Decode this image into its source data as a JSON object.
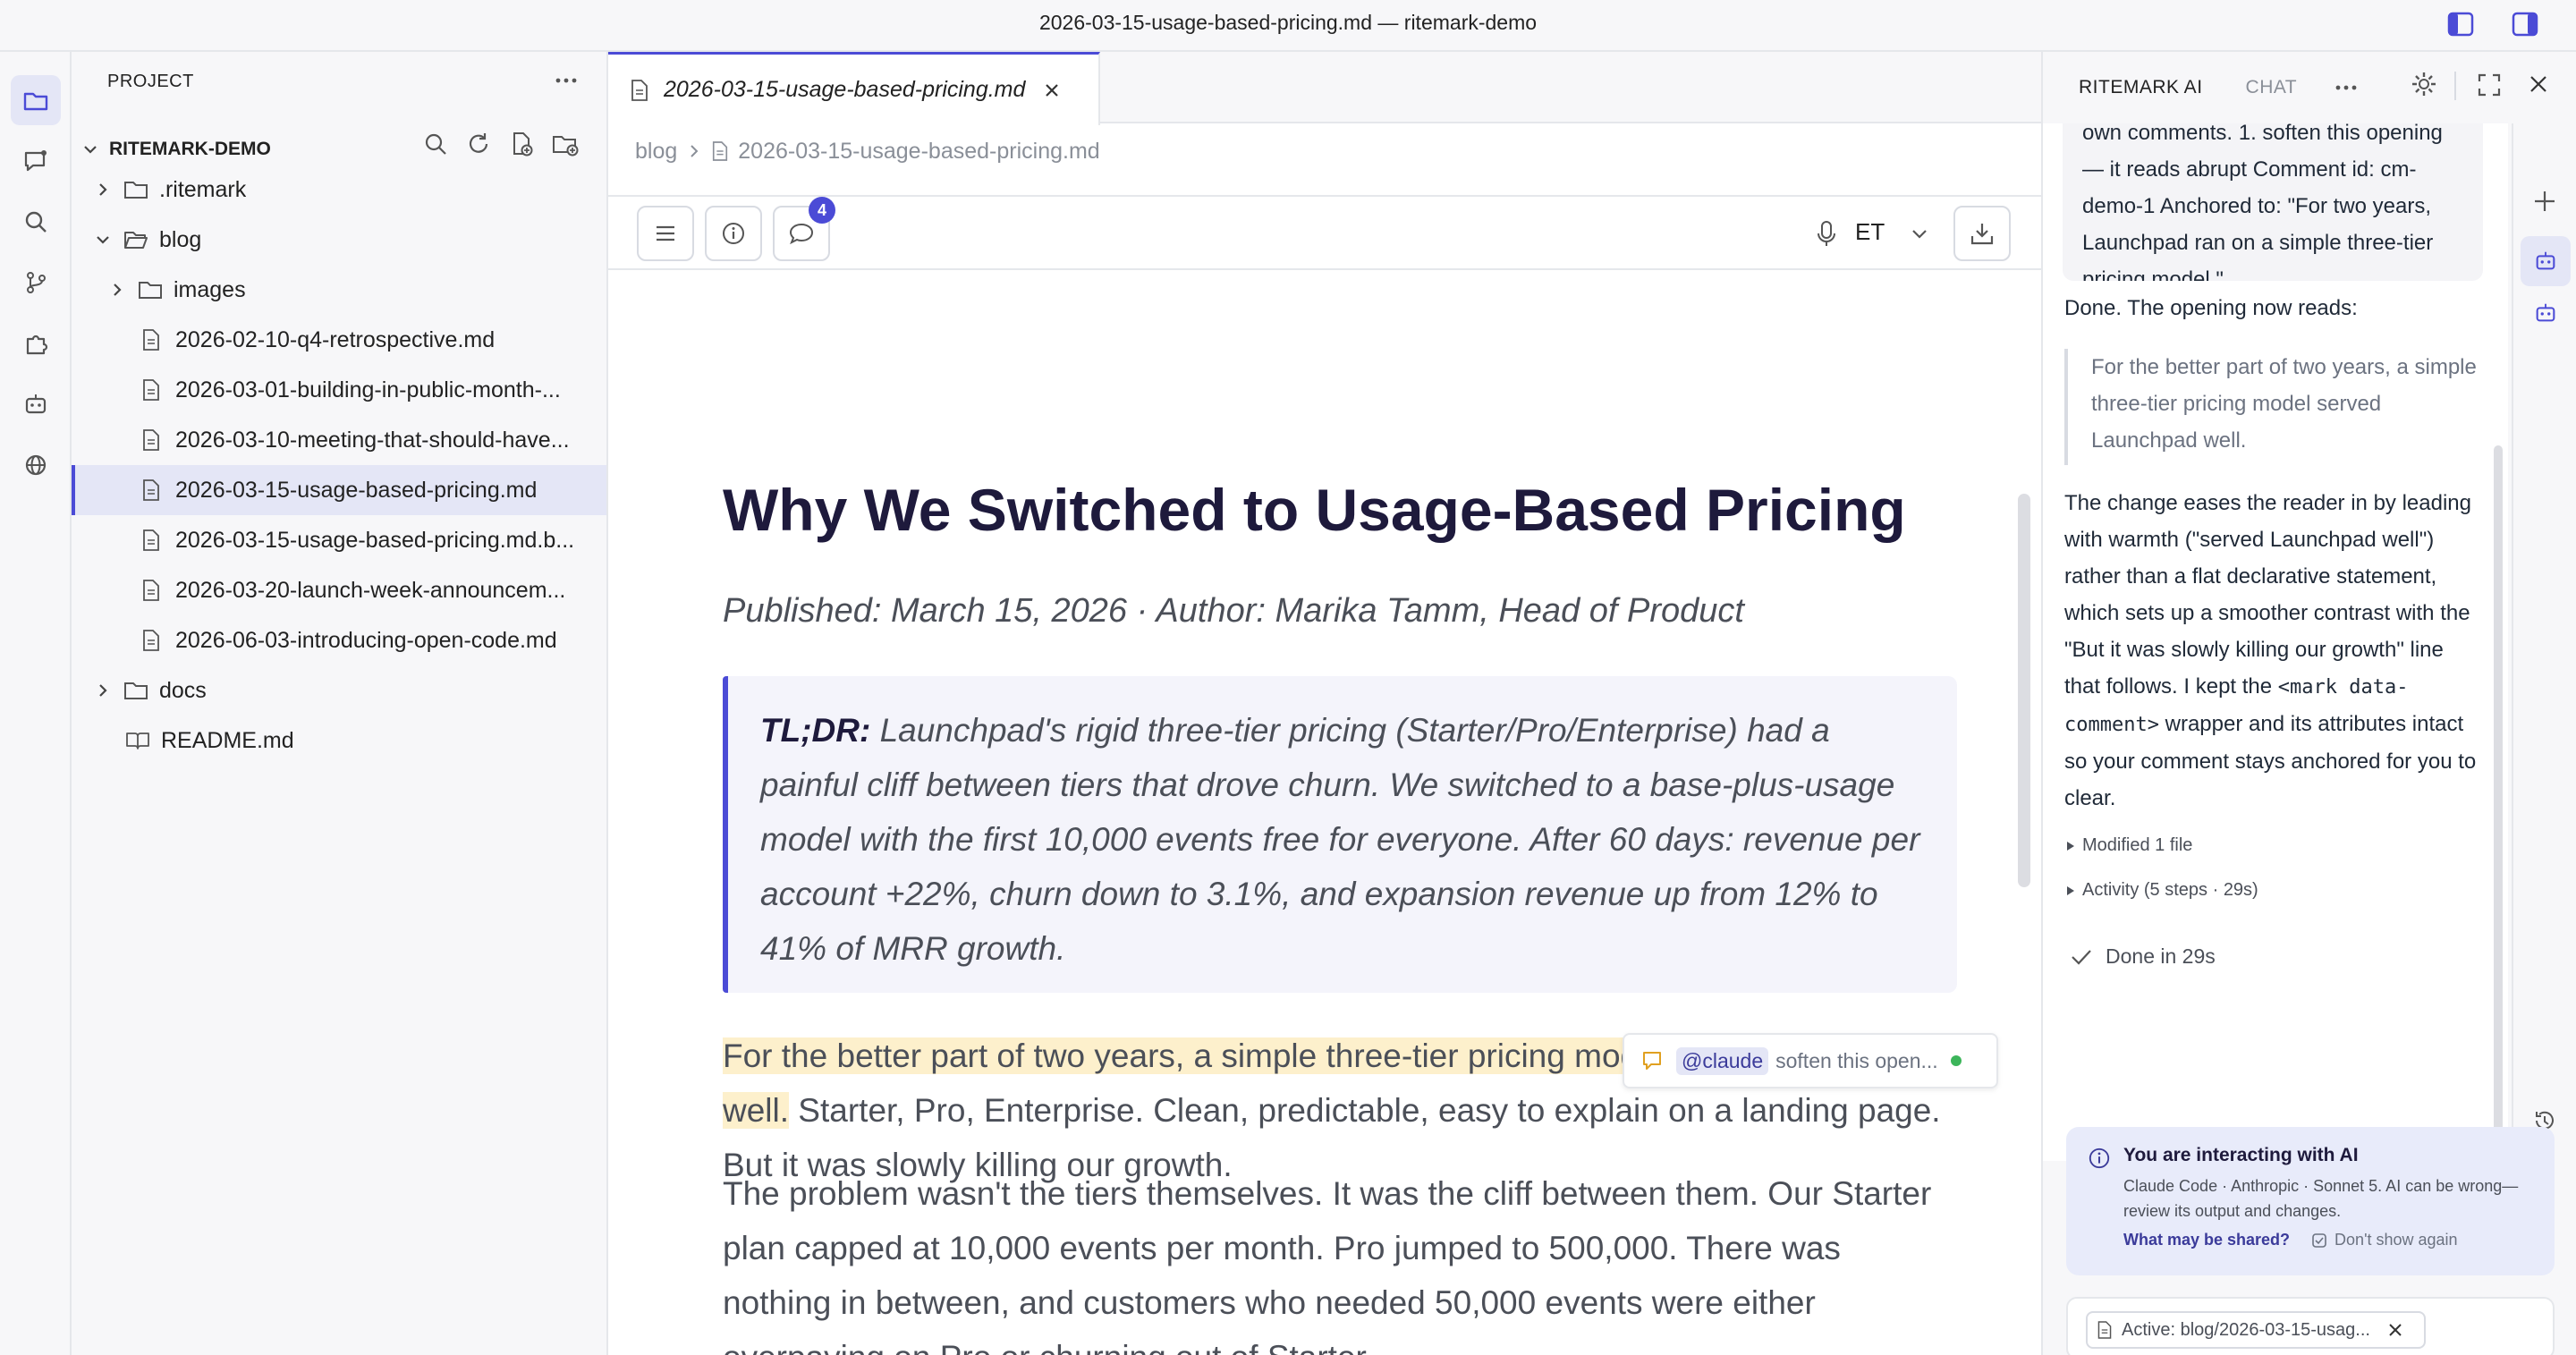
{
  "window": {
    "title": "2026-03-15-usage-based-pricing.md — ritemark-demo"
  },
  "sidebar": {
    "title": "PROJECT",
    "root": "RITEMARK-DEMO",
    "tree": [
      {
        "label": ".ritemark",
        "kind": "folder",
        "expanded": false
      },
      {
        "label": "blog",
        "kind": "folder",
        "expanded": true
      },
      {
        "label": "images",
        "kind": "folder",
        "expanded": false
      },
      {
        "label": "2026-02-10-q4-retrospective.md",
        "kind": "file"
      },
      {
        "label": "2026-03-01-building-in-public-month-...",
        "kind": "file"
      },
      {
        "label": "2026-03-10-meeting-that-should-have...",
        "kind": "file"
      },
      {
        "label": "2026-03-15-usage-based-pricing.md",
        "kind": "file",
        "selected": true
      },
      {
        "label": "2026-03-15-usage-based-pricing.md.b...",
        "kind": "file"
      },
      {
        "label": "2026-03-20-launch-week-announcem...",
        "kind": "file"
      },
      {
        "label": "2026-06-03-introducing-open-code.md",
        "kind": "file"
      },
      {
        "label": "docs",
        "kind": "folder",
        "expanded": false
      },
      {
        "label": "README.md",
        "kind": "book"
      }
    ]
  },
  "editor": {
    "tab_label": "2026-03-15-usage-based-pricing.md",
    "breadcrumb": [
      "blog",
      "2026-03-15-usage-based-pricing.md"
    ],
    "comment_count": "4",
    "language": "ET",
    "doc": {
      "title": "Why We Switched to Usage-Based Pricing",
      "meta": "Published: March 15, 2026 · Author: Marika Tamm, Head of Product",
      "tldr_label": "TL;DR:",
      "tldr_body": " Launchpad's rigid three-tier pricing (Starter/Pro/Enterprise) had a painful cliff between tiers that drove churn. We switched to a base-plus-usage model with the first 10,000 events free for everyone. After 60 days: revenue per account +22%, churn down to 3.1%, and expansion revenue up from 12% to 41% of MRR growth.",
      "p1_highlight": "For the better part of two years, a simple three-tier pricing model served Launchpad well.",
      "p1_rest": " Starter, Pro, Enterprise. Clean, predictable, easy to explain on a landing page. But it was slowly killing our growth.",
      "p2": "The problem wasn't the tiers themselves. It was the cliff between them. Our Starter plan capped at 10,000 events per month. Pro jumped to 500,000. There was nothing in between, and customers who needed 50,000 events were either overpaying on Pro or churning out of Starter."
    },
    "comment_chip": {
      "mention": "@claude",
      "text": "soften this open..."
    }
  },
  "ai_panel": {
    "tabs": [
      "RITEMARK AI",
      "CHAT"
    ],
    "user_quote": "own comments. 1. soften this opening — it reads abrupt Comment id: cm-demo-1 Anchored to: \"For two years, Launchpad ran on a simple three-tier pricing model.\"",
    "done_intro": "Done. The opening now reads:",
    "blockquote": "For the better part of two years, a simple three-tier pricing model served Launchpad well.",
    "explanation_a": "The change eases the reader in by leading with warmth (\"served Launchpad well\") rather than a flat declarative statement, which sets up a smoother contrast with the \"But it was slowly killing our growth\" line that follows. I kept the ",
    "explanation_code": "<mark data-comment>",
    "explanation_b": " wrapper and its attributes intact so your comment stays anchored for you to clear.",
    "modified": "Modified 1 file",
    "activity": "Activity (5 steps · 29s)",
    "done_time": "Done in 29s",
    "notice": {
      "title": "You are interacting with AI",
      "body": "Claude Code · Anthropic · Sonnet 5. AI can be wrong—review its output and changes.",
      "link": "What may be shared?",
      "dismiss": "Don't show again"
    },
    "active_file": "Active: blog/2026-03-15-usag..."
  },
  "colors": {
    "accent": "#4b4bd6",
    "highlight": "#fdf0cc",
    "badge": "#4b4bd6",
    "online": "#3cb55a"
  }
}
